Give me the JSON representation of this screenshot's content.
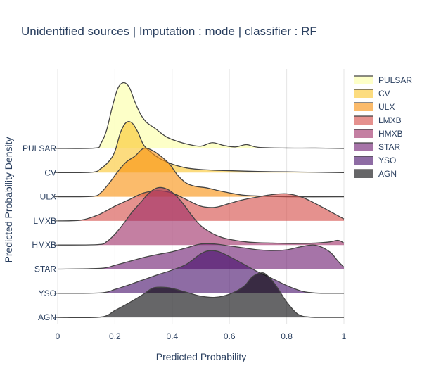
{
  "chart_data": {
    "type": "area",
    "title": "Unidentified sources | Imputation : mode | classifier : RF",
    "xlabel": "Predicted Probability",
    "ylabel": "Predicted Probability Density",
    "xlim": [
      0,
      1
    ],
    "x_ticks": [
      "0",
      "0.2",
      "0.4",
      "0.6",
      "0.8",
      "1"
    ],
    "grid": true,
    "legend_position": "right",
    "categories_top_to_bottom": [
      "PULSAR",
      "CV",
      "ULX",
      "LMXB",
      "HMXB",
      "STAR",
      "YSO",
      "AGN"
    ],
    "series": [
      {
        "name": "PULSAR",
        "color": "#fcffa4",
        "x": [
          0.0,
          0.13,
          0.15,
          0.17,
          0.19,
          0.21,
          0.23,
          0.25,
          0.27,
          0.29,
          0.31,
          0.34,
          0.38,
          0.42,
          0.46,
          0.5,
          0.54,
          0.58,
          0.62,
          0.66,
          0.7,
          0.8,
          0.9,
          1.0
        ],
        "density": [
          0.0,
          0.01,
          0.12,
          0.45,
          1.05,
          1.55,
          1.7,
          1.58,
          1.2,
          0.88,
          0.68,
          0.52,
          0.3,
          0.18,
          0.1,
          0.06,
          0.15,
          0.08,
          0.04,
          0.1,
          0.03,
          0.01,
          0.01,
          0.0
        ]
      },
      {
        "name": "CV",
        "color": "#fac42a",
        "x": [
          0.0,
          0.12,
          0.15,
          0.18,
          0.2,
          0.22,
          0.24,
          0.26,
          0.28,
          0.3,
          0.33,
          0.36,
          0.4,
          0.45,
          0.5,
          0.55,
          0.6,
          0.7,
          0.8,
          0.9,
          1.0
        ],
        "density": [
          0.0,
          0.01,
          0.1,
          0.3,
          0.55,
          1.05,
          1.3,
          1.28,
          1.05,
          0.72,
          0.5,
          0.35,
          0.22,
          0.12,
          0.08,
          0.06,
          0.05,
          0.03,
          0.02,
          0.01,
          0.0
        ]
      },
      {
        "name": "ULX",
        "color": "#f98e09",
        "x": [
          0.0,
          0.12,
          0.15,
          0.18,
          0.21,
          0.24,
          0.27,
          0.3,
          0.33,
          0.36,
          0.39,
          0.42,
          0.45,
          0.48,
          0.52,
          0.56,
          0.6,
          0.65,
          0.7,
          0.8,
          1.0
        ],
        "density": [
          0.0,
          0.01,
          0.1,
          0.35,
          0.65,
          0.9,
          1.05,
          1.25,
          1.2,
          1.05,
          0.85,
          0.55,
          0.35,
          0.27,
          0.23,
          0.16,
          0.1,
          0.04,
          0.02,
          0.0,
          0.0
        ]
      },
      {
        "name": "LMXB",
        "color": "#d44842",
        "x": [
          0.0,
          0.08,
          0.14,
          0.2,
          0.25,
          0.3,
          0.35,
          0.4,
          0.45,
          0.5,
          0.55,
          0.6,
          0.65,
          0.7,
          0.75,
          0.8,
          0.85,
          0.9,
          0.95,
          1.0
        ],
        "density": [
          0.0,
          0.02,
          0.15,
          0.38,
          0.55,
          0.72,
          0.78,
          0.72,
          0.55,
          0.38,
          0.35,
          0.45,
          0.55,
          0.62,
          0.68,
          0.7,
          0.62,
          0.45,
          0.25,
          0.05
        ]
      },
      {
        "name": "HMXB",
        "color": "#9c2964",
        "x": [
          0.0,
          0.14,
          0.17,
          0.2,
          0.23,
          0.26,
          0.29,
          0.32,
          0.35,
          0.38,
          0.41,
          0.44,
          0.47,
          0.5,
          0.54,
          0.58,
          0.62,
          0.66,
          0.7,
          0.75,
          0.8,
          0.85,
          0.9,
          0.95,
          0.98,
          1.0
        ],
        "density": [
          0.0,
          0.01,
          0.08,
          0.28,
          0.55,
          0.85,
          1.1,
          1.35,
          1.48,
          1.45,
          1.3,
          1.05,
          0.75,
          0.5,
          0.3,
          0.18,
          0.12,
          0.08,
          0.06,
          0.05,
          0.04,
          0.04,
          0.05,
          0.08,
          0.12,
          0.05
        ]
      },
      {
        "name": "STAR",
        "color": "#6a176e",
        "x": [
          0.0,
          0.15,
          0.2,
          0.25,
          0.3,
          0.35,
          0.4,
          0.45,
          0.5,
          0.55,
          0.6,
          0.65,
          0.7,
          0.75,
          0.8,
          0.85,
          0.9,
          0.95,
          0.98,
          1.0
        ],
        "density": [
          0.0,
          0.02,
          0.1,
          0.2,
          0.3,
          0.38,
          0.45,
          0.55,
          0.65,
          0.65,
          0.6,
          0.55,
          0.5,
          0.48,
          0.5,
          0.58,
          0.62,
          0.45,
          0.2,
          0.05
        ]
      },
      {
        "name": "YSO",
        "color": "#420a68",
        "x": [
          0.0,
          0.15,
          0.2,
          0.25,
          0.3,
          0.35,
          0.4,
          0.45,
          0.5,
          0.53,
          0.56,
          0.6,
          0.65,
          0.7,
          0.75,
          0.8,
          0.85,
          0.88,
          0.92,
          1.0
        ],
        "density": [
          0.0,
          0.01,
          0.1,
          0.22,
          0.35,
          0.48,
          0.6,
          0.75,
          1.02,
          1.1,
          1.08,
          0.95,
          0.75,
          0.55,
          0.38,
          0.2,
          0.06,
          0.02,
          0.0,
          0.0
        ]
      },
      {
        "name": "AGN",
        "color": "#000004",
        "x": [
          0.0,
          0.15,
          0.2,
          0.25,
          0.3,
          0.33,
          0.36,
          0.4,
          0.45,
          0.5,
          0.55,
          0.6,
          0.65,
          0.68,
          0.71,
          0.73,
          0.76,
          0.8,
          0.84,
          0.88,
          0.92,
          1.0
        ],
        "density": [
          0.0,
          0.01,
          0.18,
          0.38,
          0.6,
          0.75,
          0.78,
          0.75,
          0.65,
          0.55,
          0.52,
          0.6,
          0.8,
          1.05,
          1.15,
          1.1,
          0.85,
          0.4,
          0.08,
          0.01,
          0.0,
          0.0
        ]
      }
    ]
  }
}
